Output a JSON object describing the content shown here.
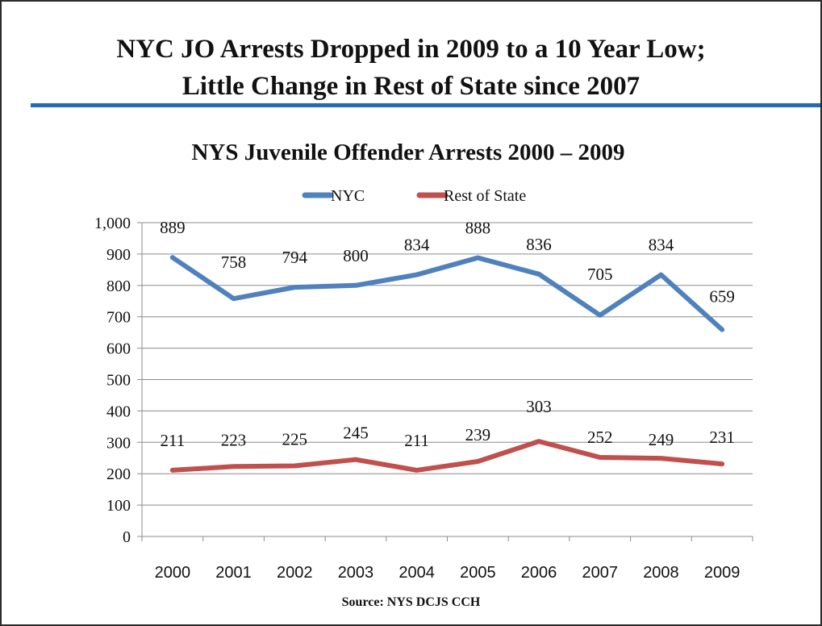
{
  "slide": {
    "headline_line1": "NYC JO Arrests Dropped in 2009 to a 10 Year Low;",
    "headline_line2": "Little Change in Rest of State since 2007",
    "source": "Source: NYS DCJS  CCH",
    "rule_color": "#1f6bb5"
  },
  "chart_data": {
    "type": "line",
    "title": "NYS Juvenile Offender Arrests 2000 – 2009",
    "xlabel": "",
    "ylabel": "",
    "categories": [
      "2000",
      "2001",
      "2002",
      "2003",
      "2004",
      "2005",
      "2006",
      "2007",
      "2008",
      "2009"
    ],
    "ylim": [
      0,
      1000
    ],
    "yticks": [
      0,
      100,
      200,
      300,
      400,
      500,
      600,
      700,
      800,
      900,
      1000
    ],
    "ytick_labels": [
      "0",
      "100",
      "200",
      "300",
      "400",
      "500",
      "600",
      "700",
      "800",
      "900",
      "1,000"
    ],
    "grid": true,
    "legend": "top-center",
    "series": [
      {
        "name": "NYC",
        "color": "#4f81bd",
        "values": [
          889,
          758,
          794,
          800,
          834,
          888,
          836,
          705,
          834,
          659
        ],
        "data_labels": [
          "889",
          "758",
          "794",
          "800",
          "834",
          "888",
          "836",
          "705",
          "834",
          "659"
        ]
      },
      {
        "name": "Rest of State",
        "color": "#c0504d",
        "values": [
          211,
          223,
          225,
          245,
          211,
          239,
          303,
          252,
          249,
          231
        ],
        "data_labels": [
          "211",
          "223",
          "225",
          "245",
          "211",
          "239",
          "303",
          "252",
          "249",
          "231"
        ]
      }
    ]
  }
}
